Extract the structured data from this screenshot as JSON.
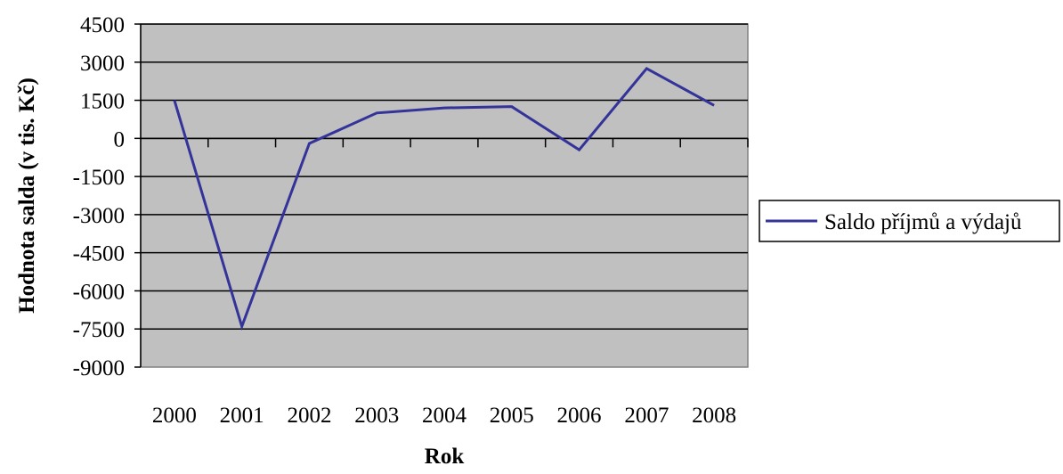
{
  "chart_data": {
    "type": "line",
    "title": "",
    "xlabel": "Rok",
    "ylabel": "Hodnota salda (v tis. Kč)",
    "categories": [
      "2000",
      "2001",
      "2002",
      "2003",
      "2004",
      "2005",
      "2006",
      "2007",
      "2008"
    ],
    "series": [
      {
        "name": "Saldo příjmů a výdajů",
        "values": [
          1500,
          -7400,
          -200,
          1000,
          1200,
          1250,
          -450,
          2750,
          1300
        ],
        "color": "#333399"
      }
    ],
    "yticks": [
      "4500",
      "3000",
      "1500",
      "0",
      "-1500",
      "-3000",
      "-4500",
      "-6000",
      "-7500",
      "-9000"
    ],
    "ylim": [
      -9000,
      4500
    ],
    "grid": true,
    "legend_position": "right",
    "plot_background": "#c0c0c0"
  }
}
